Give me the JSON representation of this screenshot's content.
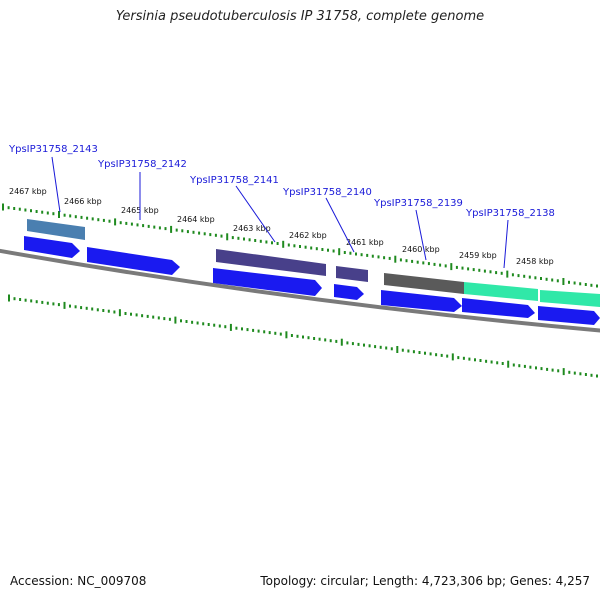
{
  "header": {
    "title": "Yersinia pseudotuberculosis IP 31758, complete genome"
  },
  "footer": {
    "accession": "Accession: NC_009708",
    "topology": "Topology: circular; Length: 4,723,306 bp; Genes: 4,257"
  },
  "map": {
    "kbp_ticks": [
      "2467 kbp",
      "2466 kbp",
      "2465 kbp",
      "2464 kbp",
      "2463 kbp",
      "2462 kbp",
      "2461 kbp",
      "2460 kbp",
      "2459 kbp",
      "2458 kbp"
    ],
    "gene_labels": [
      "YpsIP31758_2143",
      "YpsIP31758_2142",
      "YpsIP31758_2141",
      "YpsIP31758_2140",
      "YpsIP31758_2139",
      "YpsIP31758_2138"
    ],
    "colors": {
      "backbone": "#7a7a7a",
      "tick": "#1f8a1f",
      "gene_blue": "#1a1af0",
      "cog_steel": "#4a7fb0",
      "cog_slate": "#48408a",
      "cog_gray": "#5a5a5a",
      "cog_teal": "#30e8a8"
    }
  }
}
